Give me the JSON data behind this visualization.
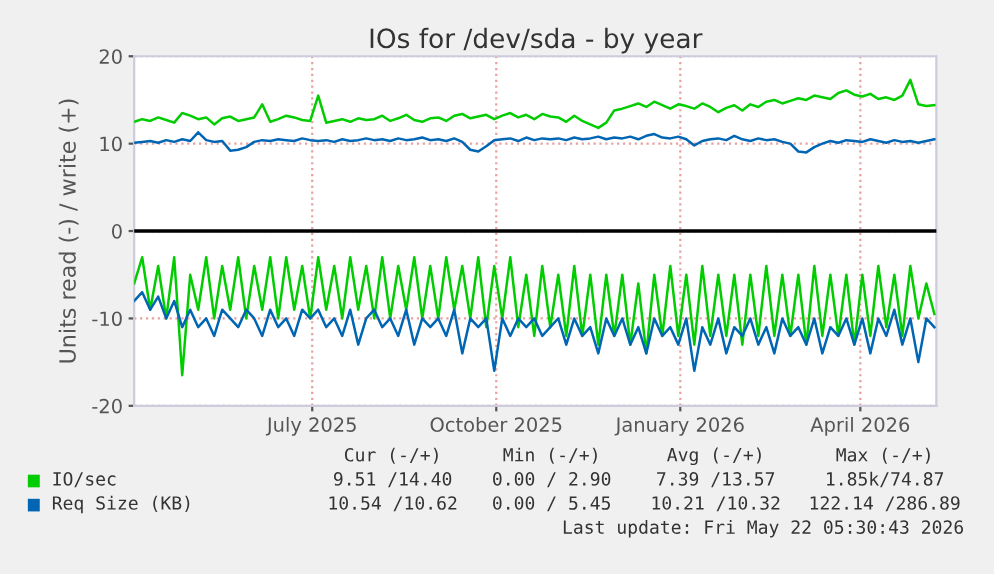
{
  "chart_data": {
    "type": "line",
    "title": "IOs for /dev/sda - by year",
    "ylabel": "Units read (-) / write (+)",
    "x": [
      "2025-04-03",
      "2025-04-07",
      "2025-04-11",
      "2025-04-15",
      "2025-04-19",
      "2025-04-23",
      "2025-04-27",
      "2025-05-01",
      "2025-05-05",
      "2025-05-09",
      "2025-05-13",
      "2025-05-17",
      "2025-05-21",
      "2025-05-25",
      "2025-05-29",
      "2025-06-02",
      "2025-06-06",
      "2025-06-10",
      "2025-06-14",
      "2025-06-18",
      "2025-06-22",
      "2025-06-26",
      "2025-06-30",
      "2025-07-04",
      "2025-07-08",
      "2025-07-12",
      "2025-07-16",
      "2025-07-20",
      "2025-07-24",
      "2025-07-28",
      "2025-08-01",
      "2025-08-05",
      "2025-08-09",
      "2025-08-13",
      "2025-08-17",
      "2025-08-21",
      "2025-08-25",
      "2025-08-29",
      "2025-09-02",
      "2025-09-06",
      "2025-09-10",
      "2025-09-14",
      "2025-09-18",
      "2025-09-22",
      "2025-09-26",
      "2025-09-30",
      "2025-10-04",
      "2025-10-08",
      "2025-10-12",
      "2025-10-16",
      "2025-10-20",
      "2025-10-24",
      "2025-10-28",
      "2025-11-01",
      "2025-11-05",
      "2025-11-09",
      "2025-11-13",
      "2025-11-17",
      "2025-11-21",
      "2025-11-25",
      "2025-11-29",
      "2025-12-03",
      "2025-12-07",
      "2025-12-11",
      "2025-12-15",
      "2025-12-19",
      "2025-12-23",
      "2025-12-27",
      "2025-12-31",
      "2026-01-04",
      "2026-01-08",
      "2026-01-12",
      "2026-01-16",
      "2026-01-20",
      "2026-01-24",
      "2026-01-28",
      "2026-02-01",
      "2026-02-05",
      "2026-02-09",
      "2026-02-13",
      "2026-02-17",
      "2026-02-21",
      "2026-02-25",
      "2026-03-01",
      "2026-03-05",
      "2026-03-09",
      "2026-03-13",
      "2026-03-17",
      "2026-03-21",
      "2026-03-25",
      "2026-03-29",
      "2026-04-02",
      "2026-04-06",
      "2026-04-10",
      "2026-04-14",
      "2026-04-18",
      "2026-04-22",
      "2026-04-26",
      "2026-04-30",
      "2026-05-04",
      "2026-05-08"
    ],
    "series": [
      {
        "name": "IO/sec",
        "color": "#00cc00",
        "values": [
          12.5,
          12.8,
          12.6,
          13.0,
          12.7,
          12.4,
          13.5,
          13.2,
          12.8,
          13.0,
          12.2,
          12.9,
          13.1,
          12.6,
          12.8,
          13.0,
          14.5,
          12.5,
          12.8,
          13.2,
          13.0,
          12.7,
          12.6,
          15.5,
          12.4,
          12.6,
          12.8,
          12.5,
          12.9,
          12.7,
          12.8,
          13.2,
          12.6,
          12.9,
          13.3,
          12.7,
          12.5,
          12.9,
          13.0,
          12.6,
          13.2,
          13.4,
          12.9,
          13.1,
          13.3,
          12.8,
          13.2,
          13.5,
          13.0,
          13.3,
          12.8,
          13.4,
          13.1,
          13.0,
          12.5,
          13.2,
          12.6,
          12.2,
          11.8,
          12.4,
          13.8,
          14.0,
          14.3,
          14.6,
          14.2,
          14.8,
          14.4,
          14.0,
          14.5,
          14.3,
          14.0,
          14.6,
          14.2,
          13.6,
          14.1,
          14.4,
          13.8,
          14.5,
          14.2,
          14.8,
          15.0,
          14.6,
          14.9,
          15.2,
          15.0,
          15.5,
          15.3,
          15.1,
          15.8,
          16.1,
          15.6,
          15.4,
          15.7,
          15.1,
          15.3,
          15.0,
          15.5,
          17.3,
          14.5,
          14.3,
          14.4
        ]
      },
      {
        "name": "Req Size (KB)",
        "color": "#0066b3",
        "values": [
          10.1,
          10.2,
          10.3,
          10.1,
          10.4,
          10.2,
          10.5,
          10.3,
          11.3,
          10.4,
          10.2,
          10.3,
          9.2,
          9.3,
          9.6,
          10.2,
          10.4,
          10.3,
          10.5,
          10.4,
          10.3,
          10.6,
          10.4,
          10.3,
          10.4,
          10.2,
          10.5,
          10.3,
          10.4,
          10.6,
          10.4,
          10.5,
          10.3,
          10.6,
          10.4,
          10.5,
          10.7,
          10.4,
          10.5,
          10.3,
          10.6,
          10.2,
          9.3,
          9.1,
          9.7,
          10.4,
          10.5,
          10.6,
          10.3,
          10.7,
          10.4,
          10.6,
          10.5,
          10.6,
          10.4,
          10.7,
          10.5,
          10.6,
          10.8,
          10.5,
          10.7,
          10.6,
          10.8,
          10.5,
          10.9,
          11.1,
          10.7,
          10.6,
          10.8,
          10.5,
          9.8,
          10.3,
          10.5,
          10.6,
          10.4,
          10.9,
          10.5,
          10.3,
          10.6,
          10.4,
          10.5,
          10.2,
          10.0,
          9.1,
          9.0,
          9.6,
          10.0,
          10.3,
          10.1,
          10.4,
          10.3,
          10.2,
          10.5,
          10.3,
          10.1,
          10.4,
          10.2,
          10.3,
          10.1,
          10.3,
          10.5
        ]
      },
      {
        "color": "#00cc00",
        "values": [
          -6,
          -3,
          -9,
          -4,
          -10,
          -3,
          -16.5,
          -5,
          -9,
          -3,
          -10,
          -4,
          -9,
          -3,
          -10,
          -4,
          -9,
          -3,
          -10,
          -3,
          -9,
          -4,
          -10,
          -3,
          -9,
          -4,
          -10,
          -3,
          -9,
          -4,
          -10,
          -3,
          -10,
          -4,
          -9,
          -3,
          -10,
          -4,
          -10,
          -3,
          -9,
          -4,
          -10,
          -3,
          -11,
          -4,
          -10,
          -3,
          -11,
          -5,
          -12,
          -4,
          -11,
          -5,
          -12,
          -4,
          -12,
          -5,
          -13,
          -5,
          -12,
          -5,
          -13,
          -6,
          -14,
          -5,
          -12,
          -4,
          -12,
          -5,
          -13,
          -4,
          -12,
          -5,
          -12,
          -5,
          -13,
          -5,
          -12,
          -4,
          -12,
          -5,
          -12,
          -5,
          -13,
          -4,
          -12,
          -5,
          -12,
          -5,
          -13,
          -5,
          -12,
          -4,
          -11,
          -5,
          -12,
          -4,
          -10,
          -6,
          -9.5
        ]
      },
      {
        "color": "#0066b3",
        "values": [
          -8,
          -7,
          -9,
          -7.5,
          -10,
          -8,
          -11,
          -9,
          -11,
          -10,
          -12,
          -9,
          -10,
          -11,
          -9,
          -10,
          -12,
          -9,
          -11,
          -10,
          -12,
          -9,
          -10,
          -9,
          -11,
          -10,
          -12,
          -9,
          -13,
          -10,
          -9,
          -11,
          -10,
          -12,
          -9,
          -13,
          -10,
          -11,
          -10,
          -12,
          -9,
          -14,
          -10,
          -11,
          -10,
          -16,
          -10,
          -12,
          -10,
          -11,
          -10,
          -12,
          -11,
          -10,
          -13,
          -10,
          -12,
          -11,
          -14,
          -10,
          -12,
          -10,
          -13,
          -11,
          -14,
          -10,
          -12,
          -11,
          -13,
          -10,
          -16,
          -11,
          -13,
          -10,
          -14,
          -11,
          -12,
          -10,
          -13,
          -11,
          -14,
          -10,
          -12,
          -11,
          -13,
          -10,
          -14,
          -11,
          -12,
          -10,
          -13,
          -10,
          -14,
          -10,
          -12,
          -9,
          -13,
          -10,
          -15,
          -10,
          -11
        ]
      }
    ],
    "xlim": [
      "2025-04-03",
      "2026-05-09"
    ],
    "xticks": [
      {
        "value": "2025-07-01",
        "label": "July 2025"
      },
      {
        "value": "2025-10-01",
        "label": "October 2025"
      },
      {
        "value": "2026-01-01",
        "label": "January 2026"
      },
      {
        "value": "2026-04-01",
        "label": "April 2026"
      }
    ],
    "ylim": [
      -20,
      20
    ],
    "yticks": [
      -20,
      -10,
      0,
      10,
      20
    ],
    "ref_lines": [
      {
        "axis": "y",
        "value": 0,
        "color": "#000000"
      }
    ],
    "grid": true,
    "legend": "bottom",
    "annotations": [
      "Cur (-/+)",
      "Min (-/+)",
      "Avg (-/+)",
      "Max (-/+)",
      "9.51 /14.40",
      "0.00 / 2.90",
      "7.39 /13.57",
      "1.85k/74.87",
      "10.54 /10.62",
      "0.00 / 5.45",
      "10.21 /10.32",
      "122.14 /286.89",
      "Last update: Fri May 22 05:30:43 2026"
    ]
  }
}
